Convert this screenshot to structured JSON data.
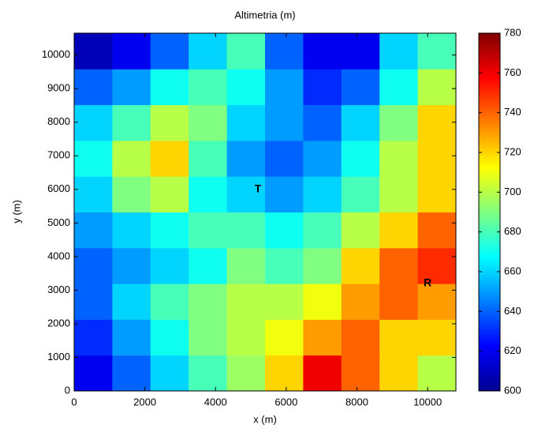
{
  "chart_data": {
    "type": "heatmap",
    "title": "Altimetria (m)",
    "x_label": "x (m)",
    "y_label": "y (m)",
    "x": [
      540,
      1620,
      2700,
      3780,
      4860,
      5940,
      7020,
      8100,
      9180,
      10260
    ],
    "y": [
      532,
      1597,
      2662,
      3727,
      4792,
      5857,
      6922,
      7987,
      9052,
      10117
    ],
    "z": [
      [
        620,
        640,
        660,
        680,
        695,
        720,
        760,
        740,
        720,
        700
      ],
      [
        630,
        650,
        670,
        690,
        700,
        710,
        730,
        740,
        720,
        720
      ],
      [
        640,
        660,
        680,
        690,
        700,
        700,
        710,
        730,
        740,
        730
      ],
      [
        640,
        650,
        660,
        670,
        690,
        680,
        690,
        720,
        740,
        750
      ],
      [
        650,
        660,
        670,
        680,
        680,
        670,
        680,
        700,
        720,
        740
      ],
      [
        660,
        690,
        700,
        670,
        660,
        650,
        660,
        680,
        700,
        720
      ],
      [
        670,
        700,
        720,
        680,
        650,
        640,
        650,
        670,
        700,
        720
      ],
      [
        660,
        680,
        700,
        690,
        660,
        650,
        640,
        660,
        690,
        720
      ],
      [
        640,
        650,
        670,
        680,
        670,
        650,
        630,
        640,
        670,
        700
      ],
      [
        610,
        620,
        640,
        660,
        680,
        640,
        620,
        620,
        660,
        680
      ]
    ],
    "xlim": [
      0,
      10800
    ],
    "ylim": [
      0,
      10650
    ],
    "xticks": [
      0,
      2000,
      4000,
      6000,
      8000,
      10000
    ],
    "yticks": [
      0,
      1000,
      2000,
      3000,
      4000,
      5000,
      6000,
      7000,
      8000,
      9000,
      10000
    ],
    "colormap": "jet",
    "clim": [
      600,
      780
    ],
    "cticks": [
      600,
      620,
      640,
      660,
      680,
      700,
      720,
      740,
      760,
      780
    ],
    "annotations": [
      {
        "text": "T",
        "x": 5200,
        "y": 6000
      },
      {
        "text": "R",
        "x": 10000,
        "y": 3200
      }
    ]
  }
}
